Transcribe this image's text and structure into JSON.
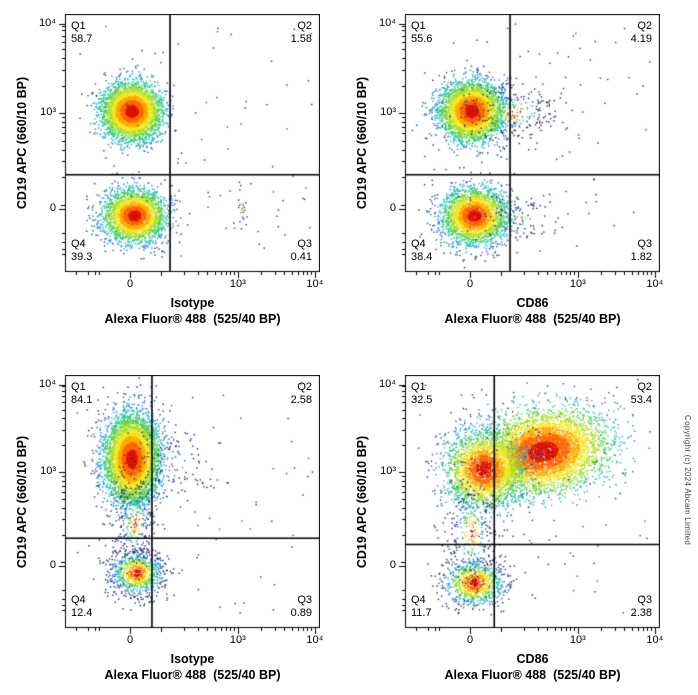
{
  "copyright": "Copyright (c) 2024 Abcam Limited",
  "chart_data": {
    "type": "scatter",
    "subtype": "flow-cytometry-quadrant-density",
    "grid": false,
    "x_ticks": [
      "0",
      "10³",
      "10⁴"
    ],
    "y_ticks": [
      "0",
      "10³",
      "10⁴"
    ],
    "plots": [
      {
        "id": "isotype-top",
        "ylabel": "CD19 APC (660/10 BP)",
        "xlabel_line1": "Isotype",
        "xlabel_line2": "Alexa Fluor® 488  (525/40 BP)",
        "quadrants": {
          "q1": {
            "label": "Q1",
            "value": "58.7"
          },
          "q2": {
            "label": "Q2",
            "value": "1.58"
          },
          "q3": {
            "label": "Q3",
            "value": "0.41"
          },
          "q4": {
            "label": "Q4",
            "value": "39.3"
          }
        },
        "gate": {
          "x_frac": 0.412,
          "y_frac": 0.623
        },
        "populations": [
          {
            "cx": 0.26,
            "cy": 0.375,
            "sx": 0.055,
            "sy": 0.052,
            "rot": 0,
            "count": 4200,
            "boost": 1.05
          },
          {
            "cx": 0.27,
            "cy": 0.78,
            "sx": 0.06,
            "sy": 0.05,
            "rot": 0,
            "count": 2900,
            "boost": 0.95
          },
          {
            "cx": 0.69,
            "cy": 0.75,
            "sx": 0.012,
            "sy": 0.05,
            "rot": 0,
            "count": 22,
            "boost": 0.2
          },
          {
            "uniform": true,
            "x0": 0.03,
            "x1": 0.97,
            "y0": 0.03,
            "y1": 0.95,
            "count": 90
          }
        ]
      },
      {
        "id": "cd86-top",
        "ylabel": "CD19 APC (660/10 BP)",
        "xlabel_line1": "CD86",
        "xlabel_line2": "Alexa Fluor® 488  (525/40 BP)",
        "quadrants": {
          "q1": {
            "label": "Q1",
            "value": "55.6"
          },
          "q2": {
            "label": "Q2",
            "value": "4.19"
          },
          "q3": {
            "label": "Q3",
            "value": "1.82"
          },
          "q4": {
            "label": "Q4",
            "value": "38.4"
          }
        },
        "gate": {
          "x_frac": 0.412,
          "y_frac": 0.623
        },
        "populations": [
          {
            "cx": 0.26,
            "cy": 0.375,
            "sx": 0.06,
            "sy": 0.055,
            "rot": 0,
            "count": 4000,
            "boost": 1.0
          },
          {
            "cx": 0.42,
            "cy": 0.38,
            "sx": 0.1,
            "sy": 0.06,
            "rot": 0,
            "count": 260,
            "boost": 0.3
          },
          {
            "cx": 0.27,
            "cy": 0.78,
            "sx": 0.065,
            "sy": 0.055,
            "rot": 0,
            "count": 2800,
            "boost": 0.9
          },
          {
            "cx": 0.44,
            "cy": 0.79,
            "sx": 0.09,
            "sy": 0.05,
            "rot": 0,
            "count": 80,
            "boost": 0.2
          },
          {
            "uniform": true,
            "x0": 0.03,
            "x1": 0.97,
            "y0": 0.03,
            "y1": 0.95,
            "count": 90
          }
        ]
      },
      {
        "id": "isotype-bottom",
        "ylabel": "CD19 APC (660/10 BP)",
        "xlabel_line1": "Isotype",
        "xlabel_line2": "Alexa Fluor® 488  (525/40 BP)",
        "quadrants": {
          "q1": {
            "label": "Q1",
            "value": "84.1"
          },
          "q2": {
            "label": "Q2",
            "value": "2.58"
          },
          "q3": {
            "label": "Q3",
            "value": "0.89"
          },
          "q4": {
            "label": "Q4",
            "value": "12.4"
          }
        },
        "gate": {
          "x_frac": 0.341,
          "y_frac": 0.645
        },
        "populations": [
          {
            "cx": 0.26,
            "cy": 0.33,
            "sx": 0.052,
            "sy": 0.085,
            "rot": 0,
            "count": 5600,
            "boost": 0.98
          },
          {
            "cx": 0.42,
            "cy": 0.35,
            "sx": 0.08,
            "sy": 0.08,
            "rot": 0,
            "count": 110,
            "boost": 0.2
          },
          {
            "cx": 0.28,
            "cy": 0.78,
            "sx": 0.055,
            "sy": 0.045,
            "rot": 0,
            "count": 850,
            "boost": 0.62
          },
          {
            "cx": 0.27,
            "cy": 0.58,
            "sx": 0.045,
            "sy": 0.11,
            "rot": 0,
            "count": 280,
            "boost": 0.3
          },
          {
            "uniform": true,
            "x0": 0.03,
            "x1": 0.97,
            "y0": 0.03,
            "y1": 0.95,
            "count": 80
          }
        ]
      },
      {
        "id": "cd86-bottom",
        "ylabel": "CD19 APC (660/10 BP)",
        "xlabel_line1": "CD86",
        "xlabel_line2": "Alexa Fluor® 488  (525/40 BP)",
        "quadrants": {
          "q1": {
            "label": "Q1",
            "value": "32.5"
          },
          "q2": {
            "label": "Q2",
            "value": "53.4"
          },
          "q3": {
            "label": "Q3",
            "value": "2.38"
          },
          "q4": {
            "label": "Q4",
            "value": "11.7"
          }
        },
        "gate": {
          "x_frac": 0.35,
          "y_frac": 0.67
        },
        "populations": [
          {
            "cx": 0.54,
            "cy": 0.3,
            "sx": 0.115,
            "sy": 0.075,
            "rot": -10,
            "count": 5200,
            "boost": 1.15
          },
          {
            "cx": 0.31,
            "cy": 0.37,
            "sx": 0.075,
            "sy": 0.075,
            "rot": 0,
            "count": 2500,
            "boost": 0.95
          },
          {
            "cx": 0.27,
            "cy": 0.82,
            "sx": 0.058,
            "sy": 0.045,
            "rot": 0,
            "count": 950,
            "boost": 0.72
          },
          {
            "cx": 0.26,
            "cy": 0.62,
            "sx": 0.05,
            "sy": 0.12,
            "rot": 0,
            "count": 300,
            "boost": 0.35
          },
          {
            "uniform": true,
            "x0": 0.03,
            "x1": 0.97,
            "y0": 0.03,
            "y1": 0.95,
            "count": 80
          }
        ]
      }
    ]
  }
}
